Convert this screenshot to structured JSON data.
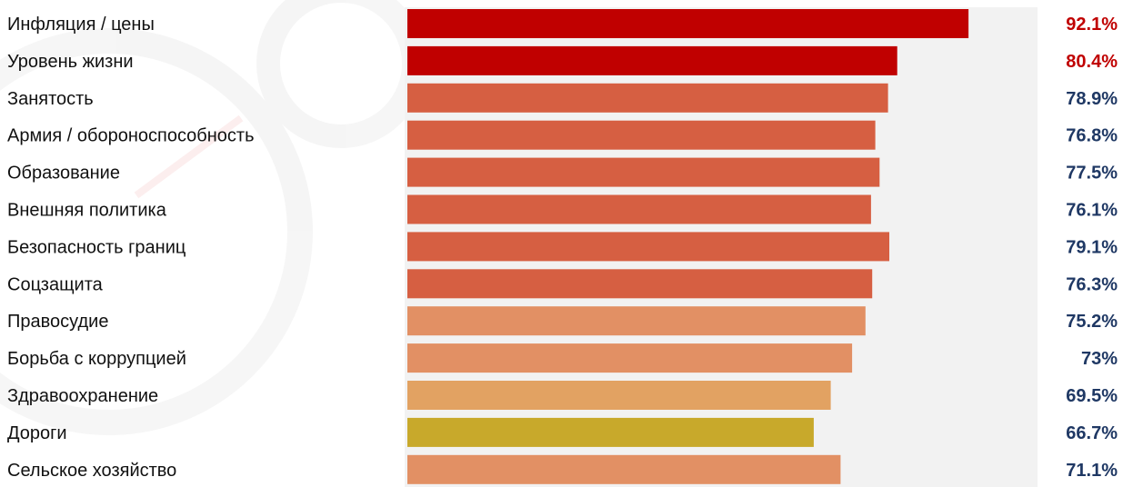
{
  "chart_data": {
    "type": "bar",
    "orientation": "horizontal",
    "categories": [
      "Инфляция / цены",
      "Уровень жизни",
      "Занятость",
      "Армия / обороноспособность",
      "Образование",
      "Внешняя политика",
      "Безопасность границ",
      "Соцзащита",
      "Правосудие",
      "Борьба с коррупцией",
      "Здравоохранение",
      "Дороги",
      "Сельское хозяйство"
    ],
    "values": [
      92.1,
      80.4,
      78.9,
      76.8,
      77.5,
      76.1,
      79.1,
      76.3,
      75.2,
      73,
      69.5,
      66.7,
      71.1
    ],
    "value_labels": [
      "92.1%",
      "80.4%",
      "78.9%",
      "76.8%",
      "77.5%",
      "76.1%",
      "79.1%",
      "76.3%",
      "75.2%",
      "73%",
      "69.5%",
      "66.7%",
      "71.1%"
    ],
    "bar_colors": [
      "#c00000",
      "#c00000",
      "#d65f42",
      "#d65f42",
      "#d65f42",
      "#d65f42",
      "#d65f42",
      "#d65f42",
      "#e29064",
      "#e29064",
      "#e2a262",
      "#c8a92b",
      "#e29064"
    ],
    "label_colors": [
      "#c00000",
      "#c00000",
      "#1f3864",
      "#1f3864",
      "#1f3864",
      "#1f3864",
      "#1f3864",
      "#1f3864",
      "#1f3864",
      "#1f3864",
      "#1f3864",
      "#1f3864",
      "#1f3864"
    ],
    "track_color": "#f2f2f2",
    "xlim": [
      0,
      100
    ],
    "grid": false,
    "legend": "none",
    "title": "",
    "xlabel": "",
    "ylabel": ""
  }
}
